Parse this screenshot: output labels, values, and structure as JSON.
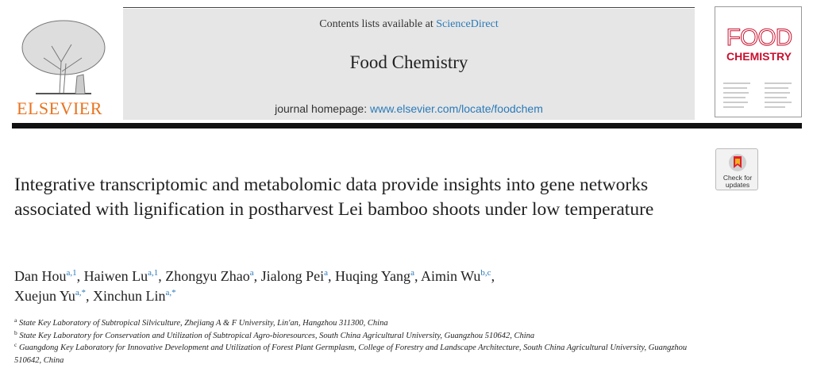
{
  "header": {
    "contents_prefix": "Contents lists available at",
    "contents_link": "ScienceDirect",
    "journal": "Food Chemistry",
    "homepage_prefix": "journal homepage:",
    "homepage_link": "www.elsevier.com/locate/foodchem",
    "publisher": "ELSEVIER",
    "cover": {
      "title_line1": "FOOD",
      "title_line2": "CHEMISTRY"
    },
    "badge": {
      "line1": "Check for",
      "line2": "updates"
    }
  },
  "article": {
    "title": "Integrative transcriptomic and metabolomic data provide insights into gene networks associated with lignification in postharvest Lei bamboo shoots under low temperature",
    "authors": [
      {
        "name": "Dan Hou",
        "sup": "a,1",
        "punct": ","
      },
      {
        "name": "Haiwen Lu",
        "sup": "a,1",
        "punct": ","
      },
      {
        "name": "Zhongyu Zhao",
        "sup": "a",
        "punct": ","
      },
      {
        "name": "Jialong Pei",
        "sup": "a",
        "punct": ","
      },
      {
        "name": "Huqing Yang",
        "sup": "a",
        "punct": ","
      },
      {
        "name": "Aimin Wu",
        "sup": "b,c",
        "punct": ","
      },
      {
        "name": "Xuejun Yu",
        "sup": "a,*",
        "punct": ","
      },
      {
        "name": "Xinchun Lin",
        "sup": "a,*"
      }
    ],
    "affiliations": [
      {
        "label": "a",
        "text": "State Key Laboratory of Subtropical Silviculture, Zhejiang A & F University, Lin'an, Hangzhou 311300, China"
      },
      {
        "label": "b",
        "text": "State Key Laboratory for Conservation and Utilization of Subtropical Agro-bioresources, South China Agricultural University, Guangzhou 510642, China"
      },
      {
        "label": "c",
        "text": "Guangdong Key Laboratory for Innovative Development and Utilization of Forest Plant Germplasm, College of Forestry and Landscape Architecture, South China Agricultural University, Guangzhou 510642, China"
      }
    ]
  }
}
